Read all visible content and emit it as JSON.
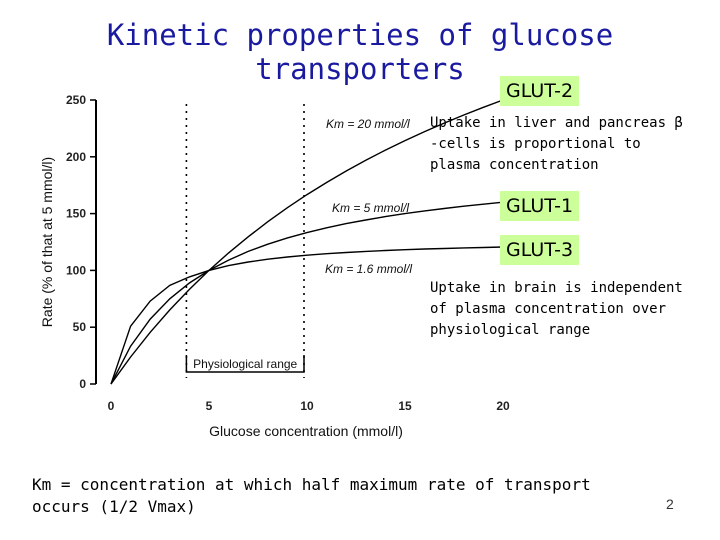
{
  "slide": {
    "title": "Kinetic properties of glucose transporters",
    "tags": [
      "GLUT-2",
      "GLUT-1",
      "GLUT-3"
    ],
    "note_glut2": [
      "Uptake in liver and pancreas β",
      "-cells is  proportional to",
      "plasma concentration"
    ],
    "note_glut3": [
      "Uptake in brain is independent",
      "of plasma concentration over",
      "physiological range"
    ],
    "footer": [
      "Km = concentration at which half maximum rate of transport",
      "occurs (1/2 Vmax)"
    ],
    "page_number": "2",
    "tag_color": "#ccff99",
    "title_color": "#1a1aa0"
  },
  "chart_data": {
    "type": "line",
    "xlabel": "Glucose concentration (mmol/l)",
    "ylabel": "Rate (% of that at 5 mmol/l)",
    "xlim": [
      0,
      20
    ],
    "ylim": [
      0,
      250
    ],
    "xticks": [
      0,
      5,
      10,
      15,
      20
    ],
    "yticks": [
      0,
      50,
      100,
      150,
      200,
      250
    ],
    "grid": false,
    "series": [
      {
        "name": "Km = 20 mmol/l",
        "km": 20,
        "x": [
          0,
          1,
          2,
          3,
          4,
          5,
          6,
          7,
          8,
          9,
          10,
          11,
          12,
          13,
          14,
          15,
          16,
          17,
          18,
          19,
          20
        ],
        "y": [
          0,
          23.8,
          45.5,
          65.2,
          83.3,
          100,
          115.4,
          129.6,
          142.9,
          155.2,
          166.7,
          177.4,
          187.5,
          197.0,
          205.9,
          214.3,
          222.2,
          229.7,
          236.8,
          243.6,
          250
        ]
      },
      {
        "name": "Km = 5 mmol/l",
        "km": 5,
        "x": [
          0,
          1,
          2,
          3,
          4,
          5,
          6,
          7,
          8,
          9,
          10,
          11,
          12,
          13,
          14,
          15,
          16,
          17,
          18,
          19,
          20
        ],
        "y": [
          0,
          33.3,
          57.1,
          75.0,
          88.9,
          100,
          109.1,
          116.7,
          123.1,
          128.6,
          133.3,
          137.5,
          141.2,
          144.4,
          147.4,
          150.0,
          152.4,
          154.5,
          156.5,
          158.3,
          160.0
        ]
      },
      {
        "name": "Km = 1.6 mmol/l",
        "km": 1.6,
        "x": [
          0,
          1,
          2,
          3,
          4,
          5,
          6,
          7,
          8,
          9,
          10,
          11,
          12,
          13,
          14,
          15,
          16,
          17,
          18,
          19,
          20
        ],
        "y": [
          0,
          50.9,
          73.0,
          86.9,
          94.3,
          100,
          104.2,
          107.4,
          109.9,
          111.8,
          113.4,
          114.7,
          115.8,
          116.7,
          117.5,
          118.2,
          118.8,
          119.3,
          119.8,
          120.2,
          120.6
        ]
      }
    ],
    "dotted_lines_x": [
      4,
      10
    ],
    "annotation": {
      "label": "Physiological range",
      "from": 4,
      "to": 10
    }
  }
}
